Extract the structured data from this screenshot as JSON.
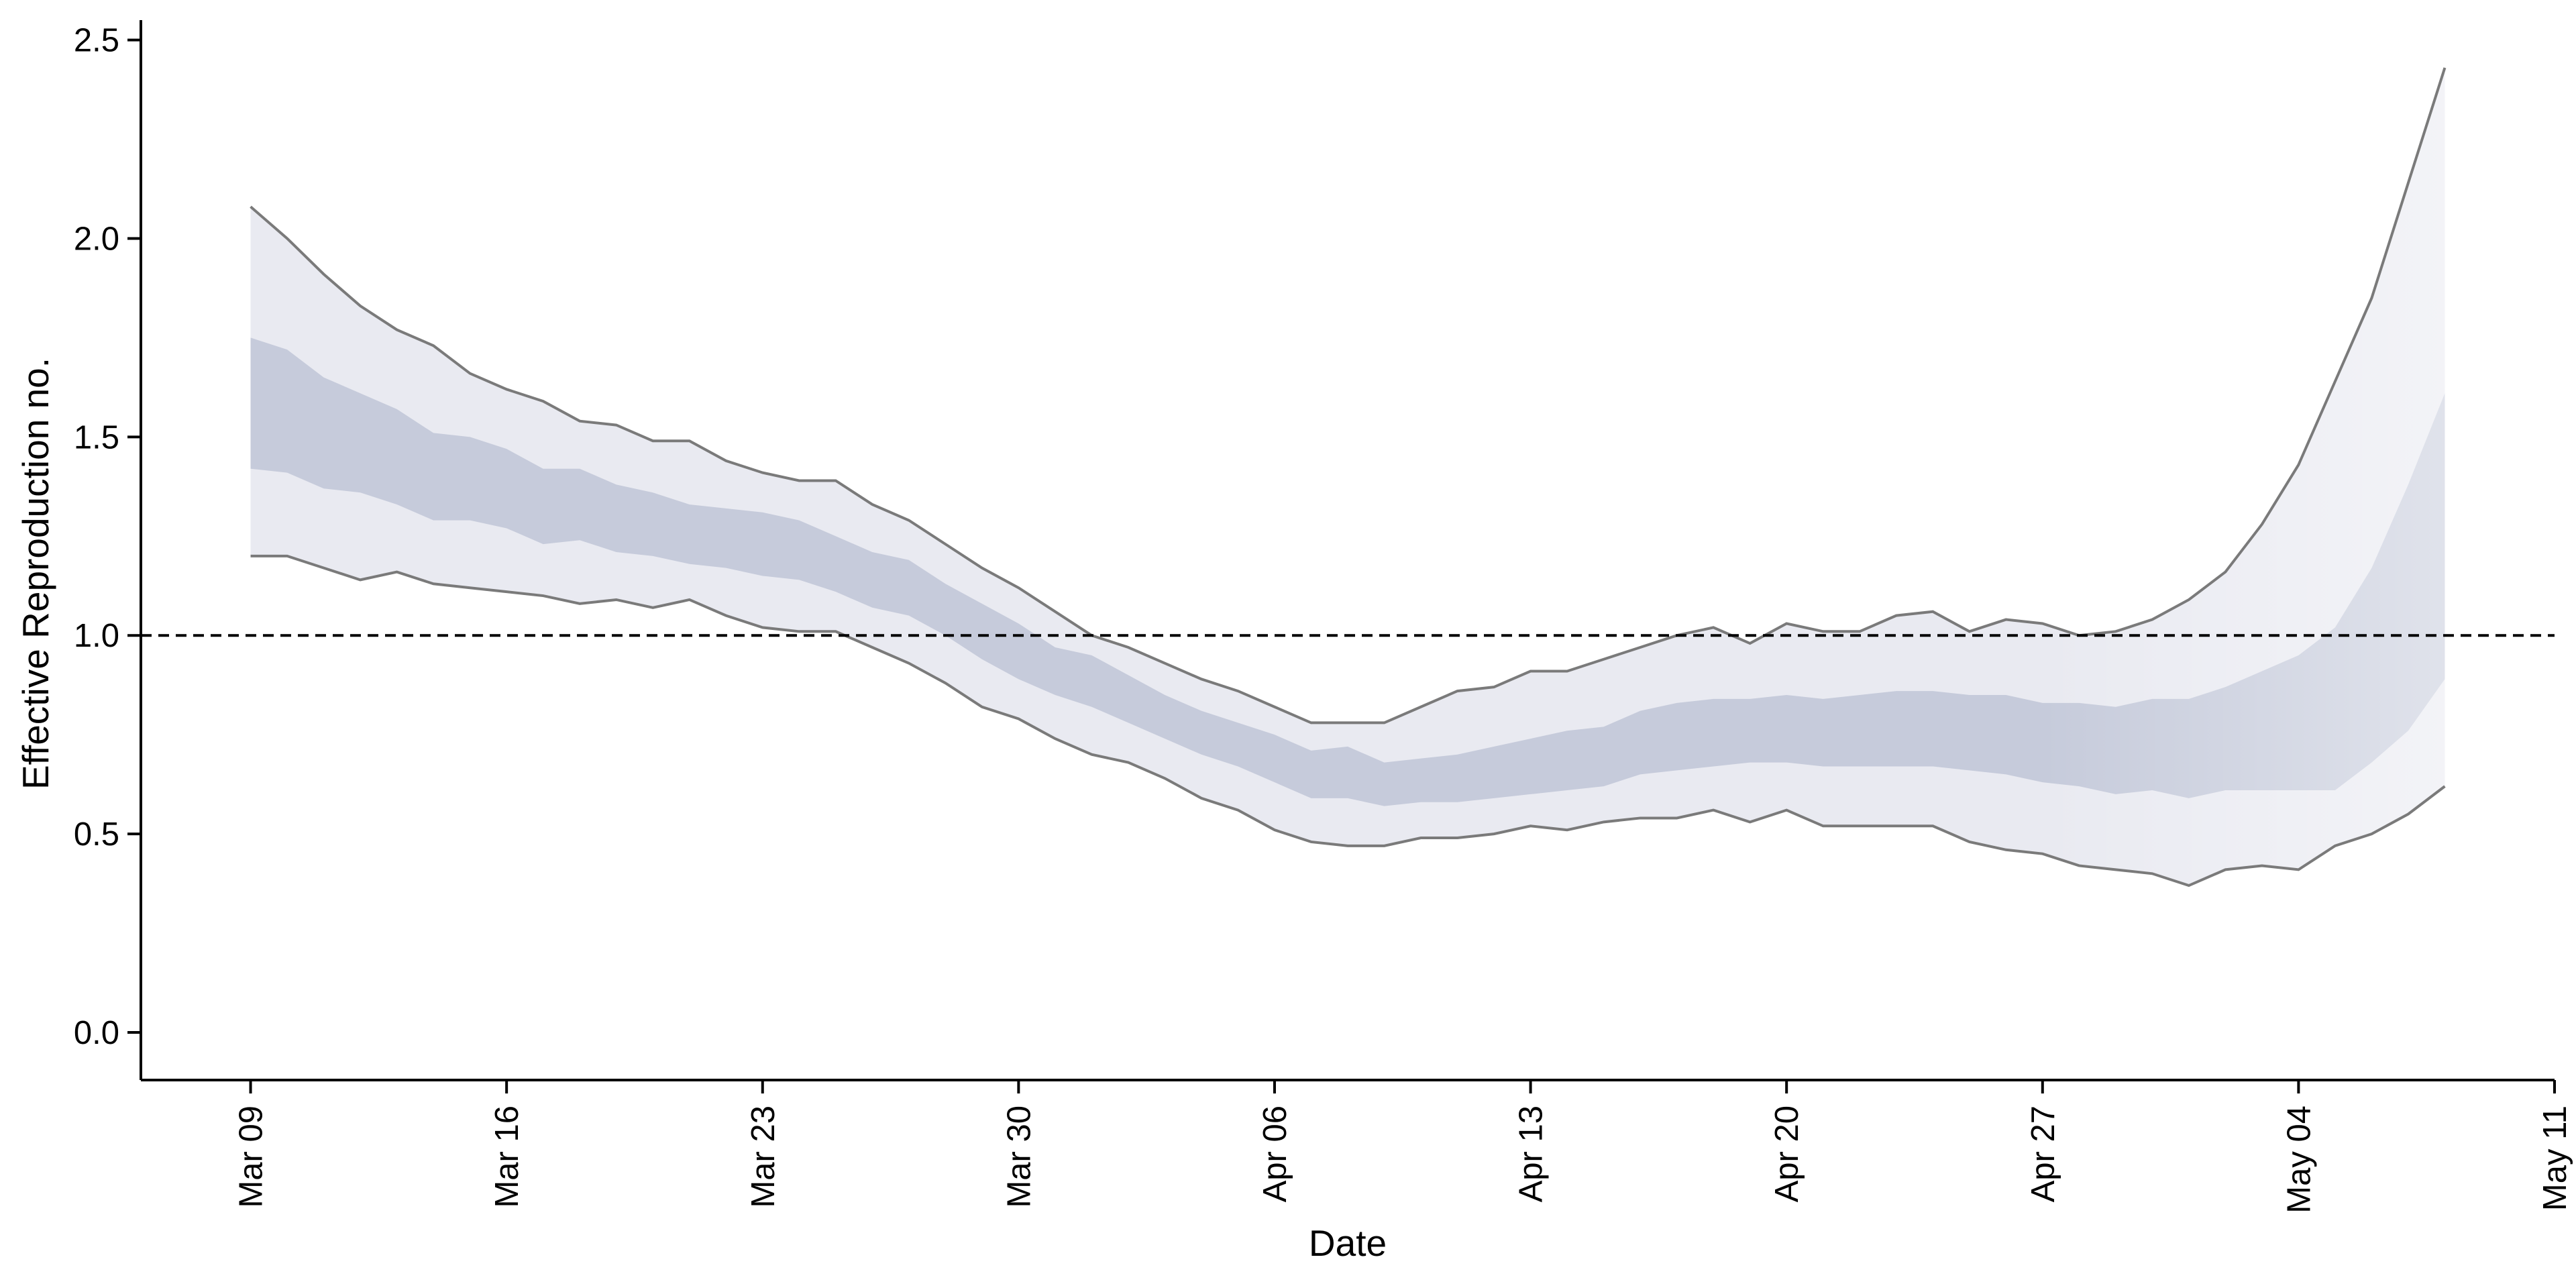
{
  "chart_data": {
    "type": "area",
    "title": "",
    "xlabel": "Date",
    "ylabel": "Effective Reproduction no.",
    "x_start": "2020-03-09",
    "x_ticks": [
      "Mar 09",
      "Mar 16",
      "Mar 23",
      "Mar 30",
      "Apr 06",
      "Apr 13",
      "Apr 20",
      "Apr 27",
      "May 04",
      "May 11"
    ],
    "x_tick_dates": [
      "2020-03-09",
      "2020-03-16",
      "2020-03-23",
      "2020-03-30",
      "2020-04-06",
      "2020-04-13",
      "2020-04-20",
      "2020-04-27",
      "2020-05-04",
      "2020-05-11"
    ],
    "xlim": [
      "2020-03-06",
      "2020-05-11"
    ],
    "ylim": [
      -0.12,
      2.55
    ],
    "y_ticks": [
      0.0,
      0.5,
      1.0,
      1.5,
      2.0,
      2.5
    ],
    "y_tick_labels": [
      "0.0",
      "0.5",
      "1.0",
      "1.5",
      "2.0",
      "2.5"
    ],
    "reference_line": {
      "y": 1.0,
      "style": "dashed"
    },
    "grid": false,
    "legend": "none",
    "forecast_start": "2020-04-27",
    "colors": {
      "outer_band": "#e9eaf1",
      "inner_band": "#c6cbdb",
      "bound_lines": "#7a7a7a",
      "reference": "#000000",
      "axis": "#000000"
    },
    "series": [
      {
        "role": "outer_upper",
        "values": [
          2.08,
          2.0,
          1.91,
          1.83,
          1.77,
          1.73,
          1.66,
          1.62,
          1.59,
          1.54,
          1.53,
          1.49,
          1.49,
          1.44,
          1.41,
          1.39,
          1.39,
          1.33,
          1.29,
          1.23,
          1.17,
          1.12,
          1.06,
          1.0,
          0.97,
          0.93,
          0.89,
          0.86,
          0.82,
          0.78,
          0.78,
          0.78,
          0.82,
          0.86,
          0.87,
          0.91,
          0.91,
          0.94,
          0.97,
          1.0,
          1.02,
          0.98,
          1.03,
          1.01,
          1.01,
          1.05,
          1.06,
          1.01,
          1.04,
          1.03,
          1.0,
          1.01,
          1.04,
          1.09,
          1.16,
          1.28,
          1.43,
          1.64,
          1.85,
          2.14,
          2.43
        ]
      },
      {
        "role": "inner_upper",
        "values": [
          1.75,
          1.72,
          1.65,
          1.61,
          1.57,
          1.51,
          1.5,
          1.47,
          1.42,
          1.42,
          1.38,
          1.36,
          1.33,
          1.32,
          1.31,
          1.29,
          1.25,
          1.21,
          1.19,
          1.13,
          1.08,
          1.03,
          0.97,
          0.95,
          0.9,
          0.85,
          0.81,
          0.78,
          0.75,
          0.71,
          0.72,
          0.68,
          0.69,
          0.7,
          0.72,
          0.74,
          0.76,
          0.77,
          0.81,
          0.83,
          0.84,
          0.84,
          0.85,
          0.84,
          0.85,
          0.86,
          0.86,
          0.85,
          0.85,
          0.83,
          0.83,
          0.82,
          0.84,
          0.84,
          0.87,
          0.91,
          0.95,
          1.02,
          1.17,
          1.38,
          1.61
        ]
      },
      {
        "role": "inner_lower",
        "values": [
          1.42,
          1.41,
          1.37,
          1.36,
          1.33,
          1.29,
          1.29,
          1.27,
          1.23,
          1.24,
          1.21,
          1.2,
          1.18,
          1.17,
          1.15,
          1.14,
          1.11,
          1.07,
          1.05,
          1.0,
          0.94,
          0.89,
          0.85,
          0.82,
          0.78,
          0.74,
          0.7,
          0.67,
          0.63,
          0.59,
          0.59,
          0.57,
          0.58,
          0.58,
          0.59,
          0.6,
          0.61,
          0.62,
          0.65,
          0.66,
          0.67,
          0.68,
          0.68,
          0.67,
          0.67,
          0.67,
          0.67,
          0.66,
          0.65,
          0.63,
          0.62,
          0.6,
          0.61,
          0.59,
          0.61,
          0.61,
          0.61,
          0.61,
          0.68,
          0.76,
          0.89
        ]
      },
      {
        "role": "outer_lower",
        "values": [
          1.2,
          1.2,
          1.17,
          1.14,
          1.16,
          1.13,
          1.12,
          1.11,
          1.1,
          1.08,
          1.09,
          1.07,
          1.09,
          1.05,
          1.02,
          1.01,
          1.01,
          0.97,
          0.93,
          0.88,
          0.82,
          0.79,
          0.74,
          0.7,
          0.68,
          0.64,
          0.59,
          0.56,
          0.51,
          0.48,
          0.47,
          0.47,
          0.49,
          0.49,
          0.5,
          0.52,
          0.51,
          0.53,
          0.54,
          0.54,
          0.56,
          0.53,
          0.56,
          0.52,
          0.52,
          0.52,
          0.52,
          0.48,
          0.46,
          0.45,
          0.42,
          0.41,
          0.4,
          0.37,
          0.41,
          0.42,
          0.41,
          0.47,
          0.5,
          0.55,
          0.62
        ]
      }
    ]
  }
}
